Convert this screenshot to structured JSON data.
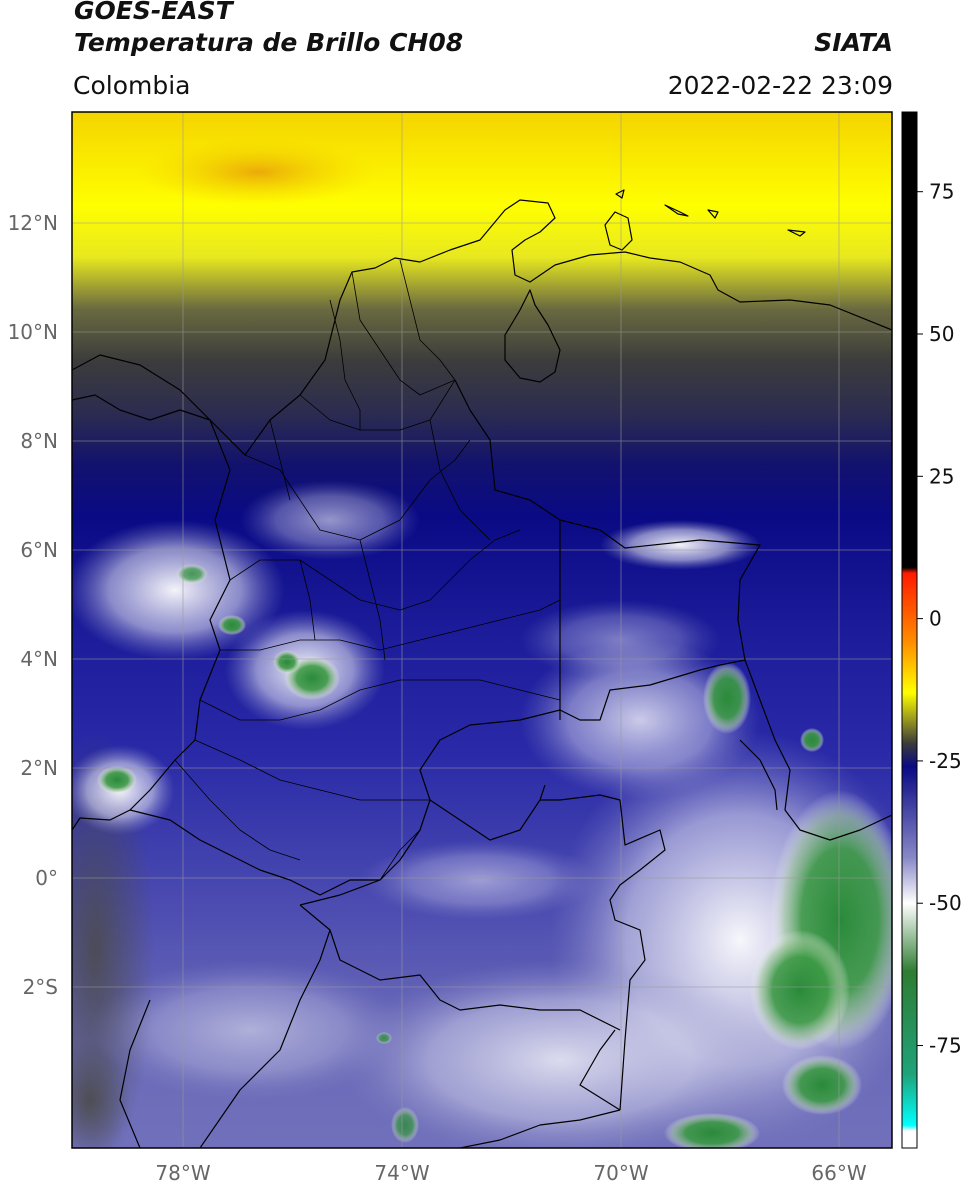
{
  "header": {
    "satellite": "GOES-EAST",
    "product": "Temperatura de Brillo CH08",
    "region": "Colombia",
    "agency": "SIATA",
    "datetime": "2022-02-22 23:09"
  },
  "axes": {
    "lat_ticks": [
      "12°N",
      "10°N",
      "8°N",
      "6°N",
      "4°N",
      "2°N",
      "0°",
      "2°S"
    ],
    "lon_ticks": [
      "78°W",
      "74°W",
      "70°W",
      "66°W"
    ]
  },
  "colorbar": {
    "ticks": [
      "75",
      "50",
      "25",
      "0",
      "-25",
      "-50",
      "-75"
    ],
    "tick_values": [
      75,
      50,
      25,
      0,
      -25,
      -50,
      -75
    ],
    "range": [
      -93,
      89
    ],
    "stops": [
      {
        "v": 89,
        "c": "#000000"
      },
      {
        "v": 9,
        "c": "#000000"
      },
      {
        "v": 8,
        "c": "#ff1a00"
      },
      {
        "v": -4,
        "c": "#ff8c00"
      },
      {
        "v": -13,
        "c": "#ffff00"
      },
      {
        "v": -22,
        "c": "#3a3a3a"
      },
      {
        "v": -26,
        "c": "#0a0a85"
      },
      {
        "v": -42,
        "c": "#8888c8"
      },
      {
        "v": -50,
        "c": "#ffffff"
      },
      {
        "v": -62,
        "c": "#2e7d32"
      },
      {
        "v": -80,
        "c": "#1fa37a"
      },
      {
        "v": -89,
        "c": "#00ffff"
      },
      {
        "v": -90,
        "c": "#ffffff"
      },
      {
        "v": -93,
        "c": "#ffffff"
      }
    ]
  },
  "colors": {
    "frame": "#000000",
    "grid": "#9a9a9a",
    "tick_label": "#666666",
    "border_line": "#000000"
  }
}
